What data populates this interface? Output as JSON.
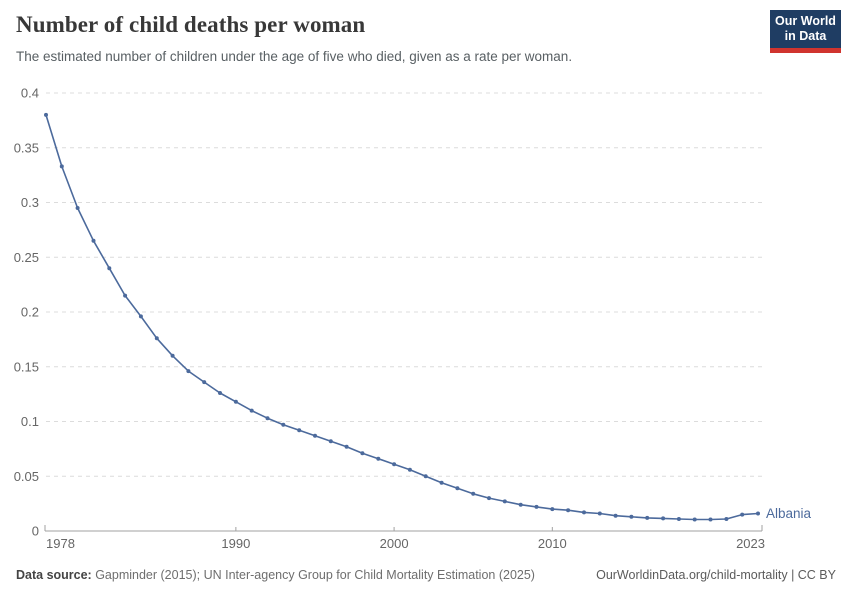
{
  "header": {
    "title": "Number of child deaths per woman",
    "subtitle": "The estimated number of children under the age of five who died, given as a rate per woman.",
    "logo": {
      "line1": "Our World",
      "line2": "in Data"
    }
  },
  "chart_data": {
    "type": "line",
    "title": "Number of child deaths per woman",
    "xlabel": "",
    "ylabel": "",
    "xlim": [
      1978,
      2023
    ],
    "ylim": [
      0,
      0.4
    ],
    "grid": "horizontal-dashed",
    "legend_position": "end-of-line",
    "x": [
      1978,
      1979,
      1980,
      1981,
      1982,
      1983,
      1984,
      1985,
      1986,
      1987,
      1988,
      1989,
      1990,
      1991,
      1992,
      1993,
      1994,
      1995,
      1996,
      1997,
      1998,
      1999,
      2000,
      2001,
      2002,
      2003,
      2004,
      2005,
      2006,
      2007,
      2008,
      2009,
      2010,
      2011,
      2012,
      2013,
      2014,
      2015,
      2016,
      2017,
      2018,
      2019,
      2020,
      2021,
      2022,
      2023
    ],
    "series": [
      {
        "name": "Albania",
        "color": "#4c6a9c",
        "values": [
          0.38,
          0.333,
          0.295,
          0.265,
          0.24,
          0.215,
          0.196,
          0.176,
          0.16,
          0.146,
          0.136,
          0.126,
          0.118,
          0.11,
          0.103,
          0.097,
          0.092,
          0.087,
          0.082,
          0.077,
          0.071,
          0.066,
          0.061,
          0.056,
          0.05,
          0.044,
          0.039,
          0.034,
          0.03,
          0.027,
          0.024,
          0.022,
          0.02,
          0.019,
          0.017,
          0.016,
          0.014,
          0.013,
          0.012,
          0.0115,
          0.011,
          0.0105,
          0.0105,
          0.011,
          0.015,
          0.016
        ]
      }
    ],
    "y_ticks": [
      {
        "value": 0,
        "label": "0"
      },
      {
        "value": 0.05,
        "label": "0.05"
      },
      {
        "value": 0.1,
        "label": "0.1"
      },
      {
        "value": 0.15,
        "label": "0.15"
      },
      {
        "value": 0.2,
        "label": "0.2"
      },
      {
        "value": 0.25,
        "label": "0.25"
      },
      {
        "value": 0.3,
        "label": "0.3"
      },
      {
        "value": 0.35,
        "label": "0.35"
      },
      {
        "value": 0.4,
        "label": "0.4"
      }
    ],
    "x_ticks": [
      {
        "value": 1978,
        "label": "1978",
        "anchor": "start"
      },
      {
        "value": 1990,
        "label": "1990",
        "anchor": "middle"
      },
      {
        "value": 2000,
        "label": "2000",
        "anchor": "middle"
      },
      {
        "value": 2010,
        "label": "2010",
        "anchor": "middle"
      },
      {
        "value": 2023,
        "label": "2023",
        "anchor": "end"
      }
    ]
  },
  "footer": {
    "source_label": "Data source:",
    "source_text": " Gapminder (2015); UN Inter-agency Group for Child Mortality Estimation (2025)",
    "right_text": "OurWorldinData.org/child-mortality | CC BY"
  },
  "colors": {
    "line": "#4c6a9c",
    "gridline": "#dcdcdc",
    "axis": "#a1a1a1",
    "tick_label": "#666666",
    "logo_bg": "#1f3d63",
    "logo_bar": "#d0342e"
  }
}
